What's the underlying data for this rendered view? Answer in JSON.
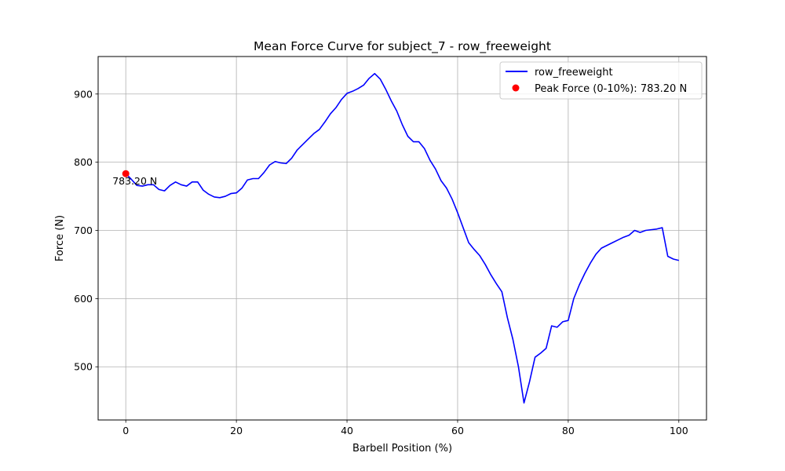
{
  "chart_data": {
    "type": "line",
    "title": "Mean Force Curve for subject_7 - row_freeweight",
    "xlabel": "Barbell Position (%)",
    "ylabel": "Force (N)",
    "xlim": [
      -5,
      105
    ],
    "ylim": [
      422,
      955
    ],
    "xticks": [
      0,
      20,
      40,
      60,
      80,
      100
    ],
    "yticks": [
      500,
      600,
      700,
      800,
      900
    ],
    "grid": true,
    "legend_position": "top-right",
    "series": [
      {
        "name": "row_freeweight",
        "color": "#0000ff",
        "x": [
          0,
          1,
          2,
          3,
          4,
          5,
          6,
          7,
          8,
          9,
          10,
          11,
          12,
          13,
          14,
          15,
          16,
          17,
          18,
          19,
          20,
          21,
          22,
          23,
          24,
          25,
          26,
          27,
          28,
          29,
          30,
          31,
          32,
          33,
          34,
          35,
          36,
          37,
          38,
          39,
          40,
          41,
          42,
          43,
          44,
          45,
          46,
          47,
          48,
          49,
          50,
          51,
          52,
          53,
          54,
          55,
          56,
          57,
          58,
          59,
          60,
          61,
          62,
          63,
          64,
          65,
          66,
          67,
          68,
          69,
          70,
          71,
          72,
          73,
          74,
          75,
          76,
          77,
          78,
          79,
          80,
          81,
          82,
          83,
          84,
          85,
          86,
          87,
          88,
          89,
          90,
          91,
          92,
          93,
          94,
          95,
          96,
          97,
          98,
          99,
          100
        ],
        "y": [
          783.2,
          775,
          766,
          765,
          767,
          767,
          760,
          758,
          766,
          771,
          767,
          765,
          771,
          771,
          759,
          753,
          749,
          748,
          750,
          754,
          755,
          762,
          774,
          776,
          776,
          785,
          796,
          801,
          799,
          798,
          806,
          818,
          826,
          834,
          842,
          848,
          859,
          871,
          880,
          892,
          901,
          904,
          908,
          913,
          923,
          930,
          922,
          907,
          890,
          875,
          855,
          838,
          830,
          830,
          820,
          803,
          790,
          773,
          762,
          746,
          726,
          704,
          682,
          672,
          663,
          650,
          635,
          622,
          610,
          572,
          540,
          500,
          447,
          478,
          514,
          520,
          527,
          560,
          558,
          566,
          568,
          600,
          620,
          637,
          652,
          665,
          674,
          678,
          682,
          686,
          690,
          693,
          700,
          697,
          700,
          701,
          702,
          704,
          662,
          658,
          656
        ]
      }
    ],
    "peak": {
      "label": "Peak Force (0-10%): 783.20 N",
      "x": 0,
      "y": 783.2,
      "annotation": "783.20 N",
      "color": "#ff0000"
    }
  }
}
